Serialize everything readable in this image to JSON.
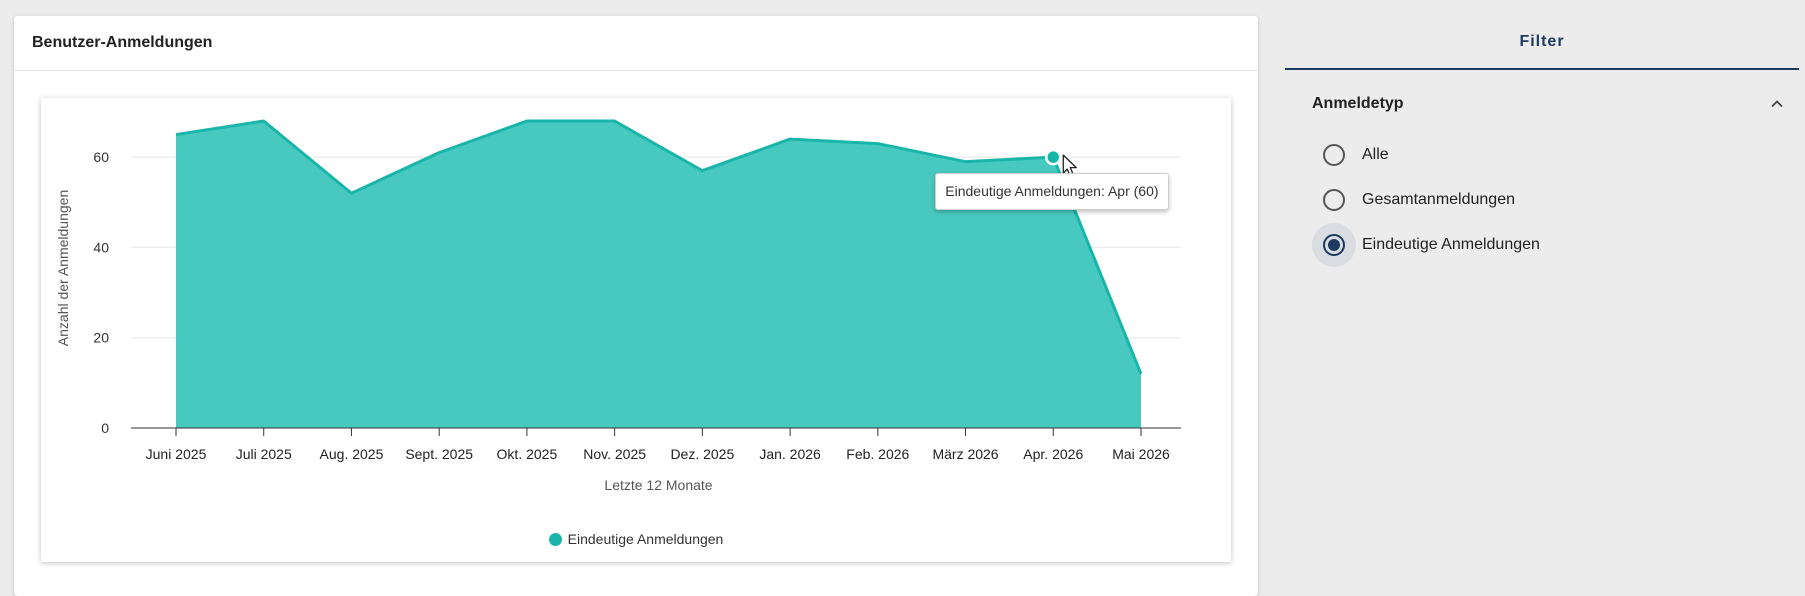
{
  "card": {
    "title": "Benutzer-Anmeldungen"
  },
  "tooltip": {
    "text": "Eindeutige Anmeldungen: Apr (60)"
  },
  "colors": {
    "series": "#19b5a9",
    "series_fill": "#3ec6bd",
    "accent": "#1d3a5f"
  },
  "chart_data": {
    "type": "area",
    "categories": [
      "Juni 2025",
      "Juli 2025",
      "Aug. 2025",
      "Sept. 2025",
      "Okt. 2025",
      "Nov. 2025",
      "Dez. 2025",
      "Jan. 2026",
      "Feb. 2026",
      "März 2026",
      "Apr. 2026",
      "Mai 2026"
    ],
    "series": [
      {
        "name": "Eindeutige Anmeldungen",
        "values": [
          65,
          68,
          52,
          61,
          68,
          68,
          57,
          64,
          63,
          59,
          60,
          12
        ]
      }
    ],
    "xlabel": "Letzte 12 Monate",
    "ylabel": "Anzahl der Anmeldungen",
    "ylim": [
      0,
      70
    ],
    "yticks": [
      0,
      20,
      40,
      60
    ],
    "grid": true,
    "legend": "bottom",
    "highlight_index": 10
  },
  "filter": {
    "tab_label": "Filter",
    "section_title": "Anmeldetyp",
    "options": [
      {
        "label": "Alle",
        "checked": false
      },
      {
        "label": "Gesamtanmeldungen",
        "checked": false
      },
      {
        "label": "Eindeutige Anmeldungen",
        "checked": true
      }
    ]
  }
}
